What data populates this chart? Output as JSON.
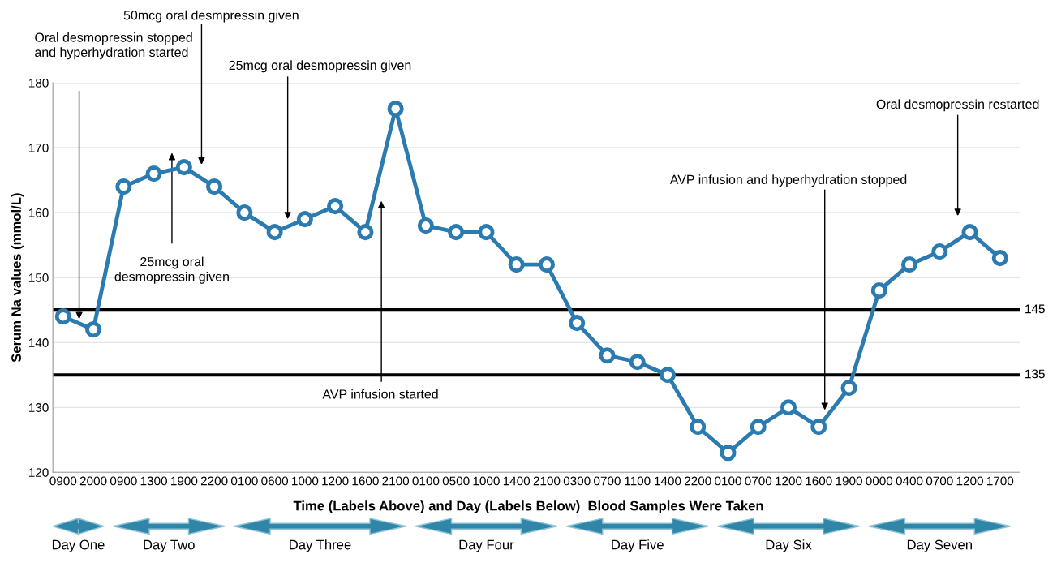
{
  "chart_data": {
    "type": "line",
    "ylabel": "Serum Na values (mmol/L)",
    "xlabel": "Time (Labels Above) and Day (Labels Below)  Blood Samples Were Taken",
    "categories": [
      "0900",
      "2000",
      "0900",
      "1300",
      "1900",
      "2200",
      "0100",
      "0600",
      "1000",
      "1200",
      "1600",
      "2100",
      "0100",
      "0500",
      "1000",
      "1400",
      "2100",
      "0300",
      "0700",
      "1100",
      "1400",
      "2200",
      "0100",
      "0700",
      "1200",
      "1600",
      "1900",
      "0000",
      "0400",
      "0700",
      "1200",
      "1700"
    ],
    "series": [
      {
        "color": "#2b7bb0",
        "values": [
          144,
          142,
          164,
          166,
          167,
          164,
          160,
          157,
          159,
          161,
          157,
          176,
          158,
          157,
          157,
          152,
          152,
          143,
          138,
          137,
          135,
          127,
          123,
          127,
          130,
          127,
          133,
          148,
          152,
          154,
          157,
          153
        ]
      }
    ],
    "ylim": [
      120,
      180
    ],
    "yticks": [
      120,
      130,
      140,
      150,
      160,
      170,
      180
    ],
    "grid": "y",
    "marker": "circle",
    "line_style": "solid",
    "legend": false,
    "ref_lines": [
      {
        "axis": "y",
        "value": 145,
        "label": "145",
        "color": "#000000"
      },
      {
        "axis": "y",
        "value": 135,
        "label": "135",
        "color": "#000000"
      }
    ],
    "annotations": [
      "Oral desmopressin stopped\nand hyperhydration started",
      "50mcg oral desmpressin given",
      "25mcg oral desmopressin given",
      "25mcg oral\ndesmopressin given",
      "AVP infusion started",
      "AVP infusion and hyperhydration stopped",
      "Oral desmopressin restarted",
      "Day One",
      "Day Two",
      "Day Three",
      "Day Four",
      "Day Five",
      "Day Six",
      "Day Seven"
    ]
  }
}
